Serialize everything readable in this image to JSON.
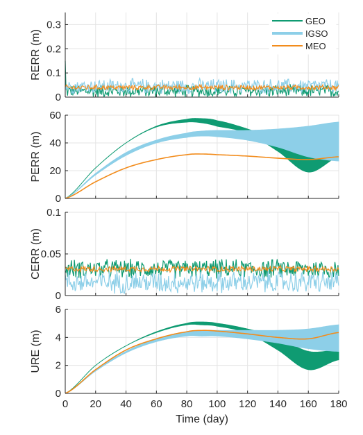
{
  "chart_data": [
    {
      "type": "line",
      "ylabel": "RERR (m)",
      "xlim": [
        0,
        180
      ],
      "ylim": [
        0,
        0.35
      ],
      "xticks": [
        0,
        20,
        40,
        60,
        80,
        100,
        120,
        140,
        160,
        180
      ],
      "yticks": [
        "0",
        "0.1",
        "0.2",
        "0.3"
      ],
      "grid": true,
      "legend": {
        "position": "top-right",
        "entries": [
          "GEO",
          "IGSO",
          "MEO"
        ]
      },
      "series": [
        {
          "name": "GEO",
          "color": "#0f9b72",
          "mean": 0.025,
          "amplitude": 0.03,
          "initial_spike": 0.15
        },
        {
          "name": "IGSO",
          "color": "#8dcfe8",
          "mean": 0.045,
          "amplitude": 0.035
        },
        {
          "name": "MEO",
          "color": "#f28c1c",
          "mean": 0.04,
          "amplitude": 0.012
        }
      ]
    },
    {
      "type": "line",
      "ylabel": "PERR (m)",
      "xlim": [
        0,
        180
      ],
      "ylim": [
        0,
        60
      ],
      "xticks": [
        0,
        20,
        40,
        60,
        80,
        100,
        120,
        140,
        160,
        180
      ],
      "yticks": [
        "0",
        "20",
        "40",
        "60"
      ],
      "grid": true,
      "series": [
        {
          "name": "GEO",
          "color": "#0f9b72",
          "x": [
            0,
            20,
            40,
            60,
            80,
            90,
            100,
            120,
            140,
            160,
            180
          ],
          "upper": [
            0,
            22,
            40,
            52,
            57,
            57.5,
            56,
            50,
            42,
            33,
            36
          ],
          "lower": [
            0,
            22,
            40,
            51.5,
            55,
            54.5,
            52,
            47,
            34,
            19,
            30
          ]
        },
        {
          "name": "IGSO",
          "color": "#8dcfe8",
          "x": [
            0,
            20,
            40,
            60,
            80,
            90,
            100,
            120,
            140,
            160,
            180
          ],
          "upper": [
            0,
            18,
            33,
            42,
            47,
            48.5,
            49,
            49,
            50,
            52,
            55
          ],
          "lower": [
            0,
            17,
            31,
            40,
            44,
            45,
            44.5,
            42,
            37,
            30,
            27
          ]
        },
        {
          "name": "MEO",
          "color": "#f28c1c",
          "x": [
            0,
            20,
            40,
            60,
            80,
            90,
            100,
            120,
            140,
            160,
            180
          ],
          "values": [
            0,
            12,
            22,
            28,
            31.5,
            32,
            31.5,
            30.5,
            29,
            28,
            30
          ]
        }
      ]
    },
    {
      "type": "line",
      "ylabel": "CERR (m)",
      "xlim": [
        0,
        180
      ],
      "ylim": [
        0,
        0.1
      ],
      "xticks": [
        0,
        20,
        40,
        60,
        80,
        100,
        120,
        140,
        160,
        180
      ],
      "yticks": [
        "0",
        "0.05",
        "0.1"
      ],
      "grid": true,
      "series": [
        {
          "name": "GEO",
          "color": "#0f9b72",
          "mean": 0.032,
          "amplitude": 0.013
        },
        {
          "name": "IGSO",
          "color": "#8dcfe8",
          "mean": 0.016,
          "amplitude": 0.015
        },
        {
          "name": "MEO",
          "color": "#f28c1c",
          "mean": 0.032,
          "amplitude": 0.004
        }
      ]
    },
    {
      "type": "line",
      "ylabel": "URE (m)",
      "xlabel": "Time (day)",
      "xlim": [
        0,
        180
      ],
      "ylim": [
        0,
        6
      ],
      "xticks": [
        0,
        20,
        40,
        60,
        80,
        100,
        120,
        140,
        160,
        180
      ],
      "yticks": [
        "0",
        "2",
        "4",
        "6"
      ],
      "grid": true,
      "series": [
        {
          "name": "GEO",
          "color": "#0f9b72",
          "x": [
            0,
            20,
            40,
            60,
            80,
            90,
            100,
            120,
            140,
            160,
            180
          ],
          "upper": [
            0,
            2.0,
            3.4,
            4.4,
            5.0,
            5.1,
            5.0,
            4.6,
            4.0,
            3.0,
            3.1
          ],
          "lower": [
            0,
            2.0,
            3.4,
            4.35,
            4.9,
            4.9,
            4.8,
            4.3,
            3.1,
            1.7,
            2.4
          ]
        },
        {
          "name": "IGSO",
          "color": "#8dcfe8",
          "x": [
            0,
            20,
            40,
            60,
            80,
            90,
            100,
            120,
            140,
            160,
            180
          ],
          "upper": [
            0,
            1.7,
            3.0,
            3.9,
            4.4,
            4.5,
            4.5,
            4.5,
            4.5,
            4.6,
            4.9
          ],
          "lower": [
            0,
            1.6,
            2.9,
            3.7,
            4.1,
            4.1,
            4.1,
            3.9,
            3.6,
            3.2,
            3.0
          ]
        },
        {
          "name": "MEO",
          "color": "#f28c1c",
          "x": [
            0,
            20,
            40,
            60,
            80,
            90,
            100,
            120,
            140,
            160,
            180
          ],
          "values": [
            0,
            1.7,
            3.1,
            3.9,
            4.4,
            4.5,
            4.45,
            4.25,
            4.0,
            3.9,
            4.35
          ]
        }
      ]
    }
  ]
}
